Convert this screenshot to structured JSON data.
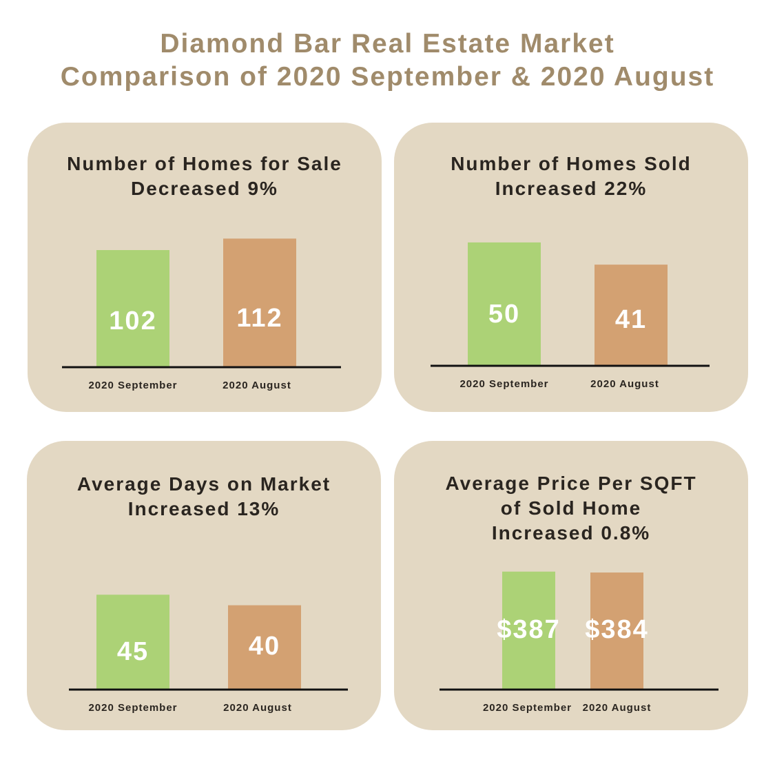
{
  "header": {
    "title_line1": "Diamond Bar Real Estate Market",
    "title_line2": "Comparison of 2020 September & 2020 August"
  },
  "colors": {
    "september": "#acd276",
    "august": "#d3a172",
    "panel": "#e3d8c3",
    "title": "#a08b6b"
  },
  "chart_data": [
    {
      "type": "bar",
      "title": [
        "Number of Homes for Sale",
        "Decreased 9%"
      ],
      "categories": [
        "2020 September",
        "2020 August"
      ],
      "values": [
        102,
        112
      ],
      "labels": [
        "102",
        "112"
      ],
      "ylim": [
        0,
        120
      ]
    },
    {
      "type": "bar",
      "title": [
        "Number of Homes Sold",
        "Increased 22%"
      ],
      "categories": [
        "2020 September",
        "2020 August"
      ],
      "values": [
        50,
        41
      ],
      "labels": [
        "50",
        "41"
      ],
      "ylim": [
        0,
        55
      ]
    },
    {
      "type": "bar",
      "title": [
        "Average Days on Market",
        "Increased 13%"
      ],
      "categories": [
        "2020 September",
        "2020 August"
      ],
      "values": [
        45,
        40
      ],
      "labels": [
        "45",
        "40"
      ],
      "ylim": [
        0,
        50
      ]
    },
    {
      "type": "bar",
      "title": [
        "Average Price Per SQFT",
        "of Sold Home",
        "Increased 0.8%"
      ],
      "categories": [
        "2020 September",
        "2020 August"
      ],
      "values": [
        387,
        384
      ],
      "labels": [
        "$387",
        "$384"
      ],
      "ylim": [
        0,
        400
      ]
    }
  ]
}
